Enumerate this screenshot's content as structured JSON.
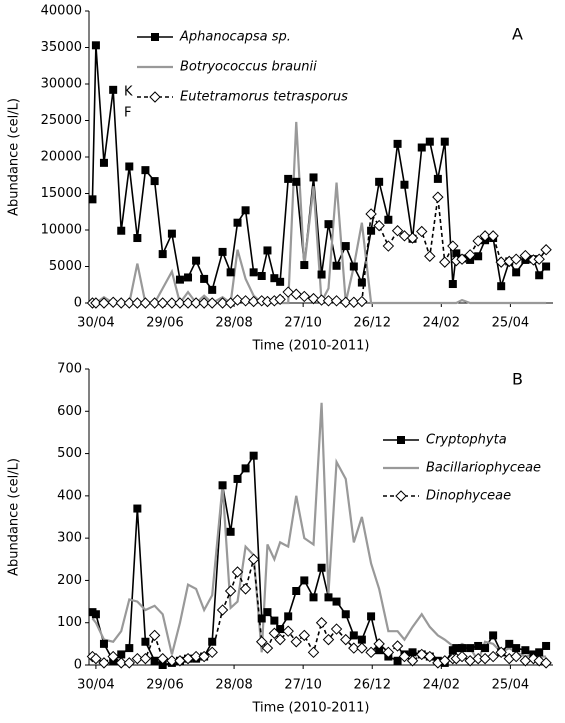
{
  "chart_data": [
    {
      "type": "line",
      "panel_label": "A",
      "x_label": "Time (2010-2011)",
      "y_label": "Abundance (cel/L)",
      "annotations": [
        "K",
        "F"
      ],
      "x": [
        -3,
        0,
        7,
        15,
        22,
        29,
        36,
        43,
        51,
        58,
        66,
        73,
        80,
        87,
        94,
        101,
        110,
        117,
        123,
        130,
        137,
        144,
        149,
        155,
        160,
        167,
        174,
        181,
        189,
        196,
        202,
        209,
        217,
        224,
        231,
        239,
        246,
        254,
        262,
        268,
        275,
        283,
        290,
        297,
        303,
        310,
        313,
        318,
        325,
        332,
        338,
        345,
        352,
        359,
        365,
        373,
        380,
        385,
        391
      ],
      "xlim": [
        -6,
        397
      ],
      "xticks": [
        {
          "value": 0,
          "label": "30/04"
        },
        {
          "value": 60,
          "label": "29/06"
        },
        {
          "value": 120,
          "label": "28/08"
        },
        {
          "value": 180,
          "label": "27/10"
        },
        {
          "value": 240,
          "label": "26/12"
        },
        {
          "value": 300,
          "label": "24/02"
        },
        {
          "value": 360,
          "label": "25/04"
        }
      ],
      "ylim": [
        0,
        40000
      ],
      "yticks": [
        0,
        5000,
        10000,
        15000,
        20000,
        25000,
        30000,
        35000,
        40000
      ],
      "series": [
        {
          "name": "Aphanocapsa sp.",
          "color": "#000000",
          "marker": "square",
          "dash": false,
          "values": [
            14200,
            35300,
            19200,
            29200,
            9900,
            18700,
            8900,
            18200,
            16700,
            6700,
            9500,
            3200,
            3500,
            5800,
            3300,
            1800,
            7000,
            4200,
            11000,
            12700,
            4200,
            3700,
            7200,
            3400,
            2900,
            17000,
            16600,
            5200,
            17200,
            3900,
            10800,
            5100,
            7800,
            5000,
            2800,
            9900,
            16600,
            11400,
            21800,
            16200,
            8800,
            21300,
            22100,
            17000,
            22100,
            2600,
            6800,
            6100,
            5900,
            6400,
            8600,
            8900,
            2300,
            5700,
            4200,
            5900,
            6000,
            3800,
            5000
          ]
        },
        {
          "name": "Botryococcus braunii",
          "color": "#999999",
          "marker": "none",
          "dash": false,
          "values": [
            0,
            0,
            800,
            0,
            0,
            0,
            5400,
            0,
            0,
            2000,
            4300,
            0,
            1500,
            0,
            1000,
            0,
            800,
            0,
            7300,
            3300,
            1000,
            0,
            0,
            0,
            0,
            0,
            24800,
            5000,
            16000,
            200,
            2000,
            16500,
            100,
            5000,
            11000,
            0,
            0,
            0,
            0,
            0,
            0,
            0,
            0,
            0,
            0,
            0,
            0,
            400,
            0,
            0,
            0,
            0,
            0,
            0,
            0,
            0,
            0,
            0,
            0
          ]
        },
        {
          "name": "Eutetramorus tetrasporus",
          "color": "#000000",
          "marker": "diamond",
          "dash": true,
          "values": [
            0,
            0,
            0,
            100,
            0,
            0,
            0,
            0,
            0,
            0,
            0,
            0,
            0,
            0,
            0,
            0,
            0,
            0,
            400,
            300,
            200,
            300,
            200,
            300,
            500,
            1500,
            1200,
            900,
            600,
            400,
            300,
            300,
            100,
            100,
            200,
            12200,
            10600,
            7800,
            9900,
            9200,
            8900,
            9800,
            6400,
            14500,
            5600,
            7800,
            5800,
            6000,
            6600,
            8500,
            9200,
            9200,
            5600,
            5700,
            6000,
            6500,
            5900,
            6000,
            7300
          ]
        }
      ]
    },
    {
      "type": "line",
      "panel_label": "B",
      "x_label": "Time (2010-2011)",
      "y_label": "Abundance (cel/L)",
      "x": [
        -3,
        0,
        7,
        15,
        22,
        29,
        36,
        43,
        51,
        58,
        66,
        73,
        80,
        87,
        94,
        101,
        110,
        117,
        123,
        130,
        137,
        144,
        149,
        155,
        160,
        167,
        174,
        181,
        189,
        196,
        202,
        209,
        217,
        224,
        231,
        239,
        246,
        254,
        262,
        268,
        275,
        283,
        290,
        297,
        303,
        310,
        313,
        318,
        325,
        332,
        338,
        345,
        352,
        359,
        365,
        373,
        380,
        385,
        391
      ],
      "xlim": [
        -6,
        397
      ],
      "xticks": [
        {
          "value": 0,
          "label": "30/04"
        },
        {
          "value": 60,
          "label": "29/06"
        },
        {
          "value": 120,
          "label": "28/08"
        },
        {
          "value": 180,
          "label": "27/10"
        },
        {
          "value": 240,
          "label": "26/12"
        },
        {
          "value": 300,
          "label": "24/02"
        },
        {
          "value": 360,
          "label": "25/04"
        }
      ],
      "ylim": [
        0,
        700
      ],
      "yticks": [
        0,
        100,
        200,
        300,
        400,
        500,
        600,
        700
      ],
      "series": [
        {
          "name": "Cryptophyta",
          "color": "#000000",
          "marker": "square",
          "dash": false,
          "values": [
            125,
            120,
            50,
            10,
            25,
            40,
            370,
            55,
            10,
            0,
            5,
            10,
            15,
            15,
            20,
            55,
            425,
            315,
            440,
            465,
            495,
            110,
            125,
            105,
            85,
            115,
            175,
            200,
            160,
            230,
            160,
            150,
            120,
            70,
            60,
            115,
            35,
            20,
            10,
            25,
            30,
            25,
            20,
            10,
            5,
            35,
            40,
            40,
            40,
            45,
            40,
            70,
            30,
            50,
            40,
            35,
            25,
            30,
            45
          ]
        },
        {
          "name": "Bacillariophyceae",
          "color": "#999999",
          "marker": "none",
          "dash": false,
          "values": [
            110,
            100,
            60,
            55,
            80,
            155,
            150,
            130,
            140,
            120,
            25,
            100,
            190,
            180,
            130,
            165,
            425,
            135,
            150,
            280,
            260,
            30,
            285,
            250,
            290,
            280,
            400,
            300,
            285,
            620,
            170,
            480,
            440,
            290,
            350,
            240,
            180,
            80,
            80,
            60,
            90,
            120,
            90,
            70,
            60,
            45,
            40,
            50,
            40,
            10,
            55,
            50,
            30,
            40,
            30,
            20,
            25,
            20,
            20
          ]
        },
        {
          "name": "Dinophyceae",
          "color": "#000000",
          "marker": "diamond",
          "dash": true,
          "values": [
            20,
            15,
            5,
            20,
            5,
            5,
            15,
            15,
            70,
            15,
            10,
            10,
            15,
            20,
            20,
            30,
            130,
            175,
            220,
            180,
            250,
            55,
            40,
            75,
            60,
            80,
            55,
            70,
            30,
            100,
            60,
            85,
            60,
            40,
            40,
            30,
            50,
            30,
            45,
            20,
            10,
            25,
            20,
            5,
            10,
            15,
            15,
            20,
            10,
            15,
            15,
            20,
            30,
            15,
            20,
            10,
            15,
            10,
            5
          ]
        }
      ]
    }
  ]
}
